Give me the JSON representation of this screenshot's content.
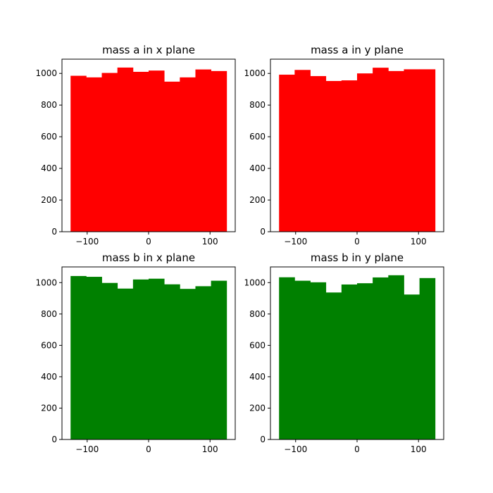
{
  "chart_data": [
    {
      "type": "bar",
      "title": "mass a in x plane",
      "color": "#ff0000",
      "bin_edges": [
        -127,
        -101.6,
        -76.2,
        -50.8,
        -25.4,
        0,
        25.4,
        50.8,
        76.2,
        101.6,
        127
      ],
      "values": [
        985,
        975,
        1003,
        1037,
        1010,
        1018,
        948,
        975,
        1025,
        1015
      ],
      "xlim": [
        -141,
        141
      ],
      "ylim": [
        0,
        1090
      ],
      "xticks": [
        -100,
        0,
        100
      ],
      "yticks": [
        0,
        200,
        400,
        600,
        800,
        1000
      ],
      "grid": false
    },
    {
      "type": "bar",
      "title": "mass a in y plane",
      "color": "#ff0000",
      "bin_edges": [
        -127,
        -101.6,
        -76.2,
        -50.8,
        -25.4,
        0,
        25.4,
        50.8,
        76.2,
        101.6,
        127
      ],
      "values": [
        992,
        1022,
        983,
        952,
        956,
        1000,
        1036,
        1015,
        1026,
        1026
      ],
      "xlim": [
        -141,
        141
      ],
      "ylim": [
        0,
        1090
      ],
      "xticks": [
        -100,
        0,
        100
      ],
      "yticks": [
        0,
        200,
        400,
        600,
        800,
        1000
      ],
      "grid": false
    },
    {
      "type": "bar",
      "title": "mass b in x plane",
      "color": "#008000",
      "bin_edges": [
        -127,
        -101.6,
        -76.2,
        -50.8,
        -25.4,
        0,
        25.4,
        50.8,
        76.2,
        101.6,
        127
      ],
      "values": [
        1042,
        1037,
        998,
        962,
        1020,
        1025,
        989,
        960,
        977,
        1012
      ],
      "xlim": [
        -141,
        141
      ],
      "ylim": [
        0,
        1100
      ],
      "xticks": [
        -100,
        0,
        100
      ],
      "yticks": [
        0,
        200,
        400,
        600,
        800,
        1000
      ],
      "grid": false
    },
    {
      "type": "bar",
      "title": "mass b in y plane",
      "color": "#008000",
      "bin_edges": [
        -127,
        -101.6,
        -76.2,
        -50.8,
        -25.4,
        0,
        25.4,
        50.8,
        76.2,
        101.6,
        127
      ],
      "values": [
        1034,
        1012,
        1002,
        937,
        988,
        996,
        1033,
        1047,
        924,
        1029
      ],
      "xlim": [
        -141,
        141
      ],
      "ylim": [
        0,
        1100
      ],
      "xticks": [
        -100,
        0,
        100
      ],
      "yticks": [
        0,
        200,
        400,
        600,
        800,
        1000
      ],
      "grid": false
    }
  ]
}
